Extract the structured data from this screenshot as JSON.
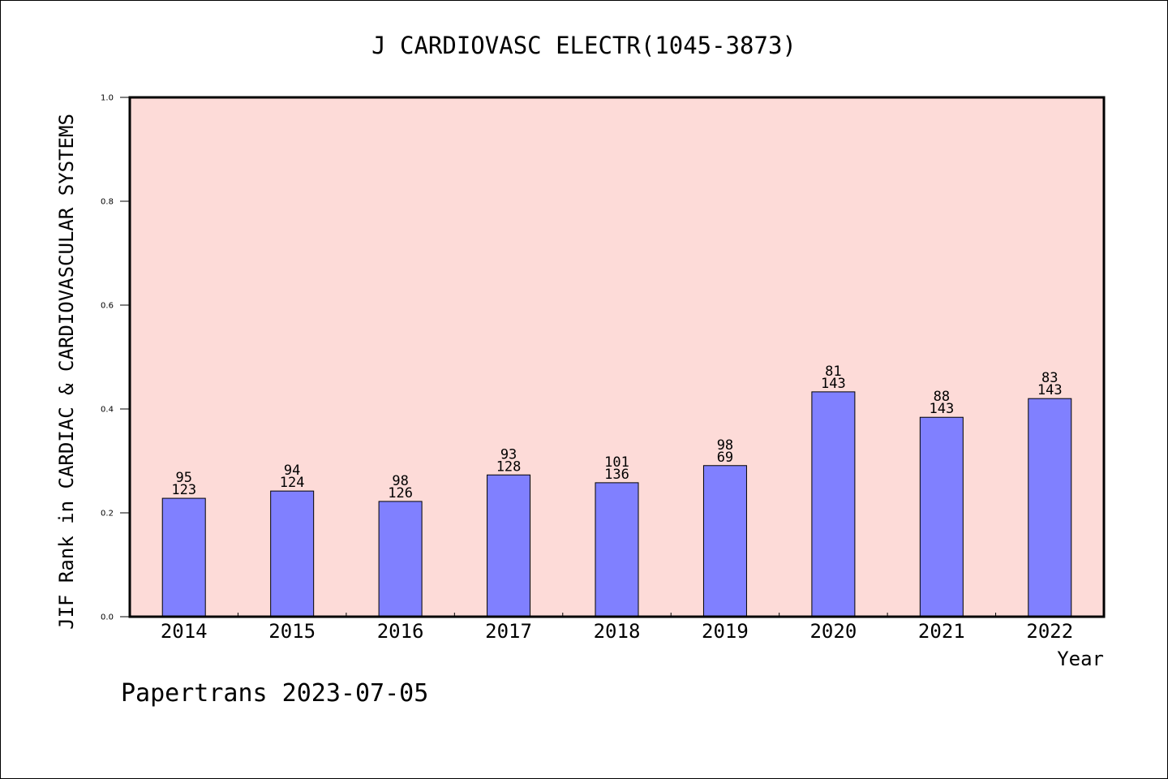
{
  "footer": {
    "text": "Papertrans 2023-07-05"
  },
  "chart_data": {
    "type": "bar",
    "title": "J CARDIOVASC ELECTR(1045-3873)",
    "xlabel": "Year",
    "ylabel": "JIF Rank in CARDIAC & CARDIOVASCULAR SYSTEMS",
    "ylim": [
      0,
      1.0
    ],
    "yticks": [
      "0.0",
      "0.2",
      "0.4",
      "0.6",
      "0.8",
      "1.0"
    ],
    "categories": [
      "2014",
      "2015",
      "2016",
      "2017",
      "2018",
      "2019",
      "2020",
      "2021",
      "2022"
    ],
    "values": [
      0.228,
      0.242,
      0.222,
      0.273,
      0.258,
      0.291,
      0.433,
      0.384,
      0.42
    ],
    "rank": [
      "95",
      "94",
      "98",
      "93",
      "101",
      "98",
      "81",
      "88",
      "83"
    ],
    "total": [
      "123",
      "124",
      "126",
      "128",
      "136",
      "69",
      "143",
      "143",
      "143"
    ],
    "grid": false,
    "colors": {
      "bar": "#8080ff",
      "plot_bg": "#fddbd8",
      "axis": "#000000"
    }
  }
}
